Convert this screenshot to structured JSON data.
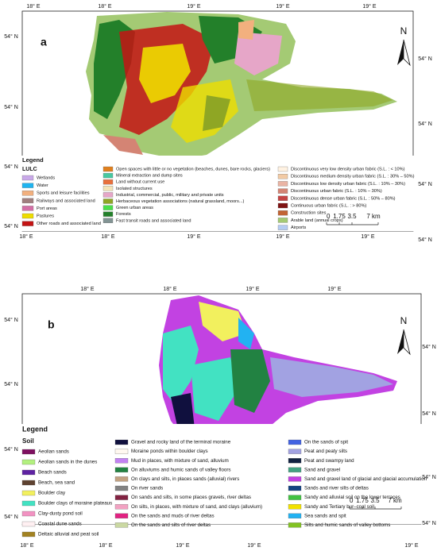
{
  "panel_a": {
    "label": "a",
    "north": "N",
    "legend_title": "Legend",
    "legend_subtitle": "LULC",
    "top_ticks": [
      "18° E",
      "18° E",
      "19° E",
      "19° E",
      "19° E"
    ],
    "bottom_ticks": [
      "18° E",
      "18° E",
      "19° E",
      "19° E",
      "19° E"
    ],
    "left_ticks": [
      "54° N",
      "54° N",
      "54° N",
      "54° N"
    ],
    "right_ticks": [
      "54° N",
      "54° N",
      "54° N",
      "54° N"
    ],
    "scale": [
      "0",
      "1.75",
      "3.5",
      "7 km"
    ],
    "legend": [
      [
        {
          "name": "Wetlands",
          "color": "#c9a9e9"
        },
        {
          "name": "Water",
          "color": "#1fb4f0"
        },
        {
          "name": "Sports and leisure facilities",
          "color": "#f2b07e"
        },
        {
          "name": "Railways and associated land",
          "color": "#a07f7f"
        },
        {
          "name": "Port areas",
          "color": "#d46fa6"
        },
        {
          "name": "Pastures",
          "color": "#eedd00"
        },
        {
          "name": "Other roads and associated land",
          "color": "#c41414"
        }
      ],
      [
        {
          "name": "Open spaces with little or no vegetation (beaches, dunes, bare rocks, glaciers)",
          "color": "#e0801e"
        },
        {
          "name": "Mineral extraction and dump sites",
          "color": "#48c8a0"
        },
        {
          "name": "Land without current use",
          "color": "#e8703c"
        },
        {
          "name": "Isolated structures",
          "color": "#f4e4b8"
        },
        {
          "name": "Industrial, commercial, public, military and private units",
          "color": "#e6a6c8"
        },
        {
          "name": "Herbaceous vegetation associations (natural grassland, moors...)",
          "color": "#8fa624"
        },
        {
          "name": "Green urban areas",
          "color": "#4ae04a"
        },
        {
          "name": "Forests",
          "color": "#23802a"
        },
        {
          "name": "Fast transit roads and associated land",
          "color": "#829494"
        }
      ],
      [
        {
          "name": "Discontinuous very low density urban fabric (S.L. : < 10%)",
          "color": "#fff2e2"
        },
        {
          "name": "Discontinuous medium density urban fabric (S.L. : 30% – 50%)",
          "color": "#f2caa4"
        },
        {
          "name": "Discontinuous low density urban fabric (S.L. : 10% – 30%)",
          "color": "#eab4a4"
        },
        {
          "name": "Discontinuous urban fabric (S.L. : 10% – 30%)",
          "color": "#d48474"
        },
        {
          "name": "Discontinuous dense urban fabric (S.L. : 50% – 80%)",
          "color": "#c44444"
        },
        {
          "name": "Continuous urban fabric (S.L. : > 80%)",
          "color": "#7e1212"
        },
        {
          "name": "Construction sites",
          "color": "#c26434"
        },
        {
          "name": "Arable land (annual crops)",
          "color": "#a4ca74"
        },
        {
          "name": "Airports",
          "color": "#b4ccf2"
        }
      ]
    ]
  },
  "panel_b": {
    "label": "b",
    "north": "N",
    "legend_title": "Legend",
    "legend_subtitle": "Soil",
    "top_ticks": [
      "18° E",
      "18° E",
      "19° E",
      "19° E"
    ],
    "bottom_ticks": [
      "18° E",
      "18° E",
      "19° E",
      "19° E",
      "19° E"
    ],
    "left_ticks": [
      "54° N",
      "54° N",
      "54° N",
      "54° N"
    ],
    "right_ticks": [
      "54° N",
      "54° N",
      "54° N",
      "54° N"
    ],
    "scale": [
      "0",
      "1.75",
      "3.5",
      "7 km"
    ],
    "legend": [
      [
        {
          "name": "Aeolian sands",
          "color": "#7e1060"
        },
        {
          "name": "Aeolian sands in the dunes",
          "color": "#b2f07e"
        },
        {
          "name": "Beach sands",
          "color": "#5e22a2"
        },
        {
          "name": "Beach, sea sand",
          "color": "#5e4230"
        },
        {
          "name": "Boulder clay",
          "color": "#f2f05e"
        },
        {
          "name": "Boulder clays of moraine plateaus",
          "color": "#42e2c2"
        },
        {
          "name": "Clay-dusty pond soil",
          "color": "#f292c2"
        },
        {
          "name": "Coastal dune sands",
          "color": "#fff0f2"
        },
        {
          "name": "Deltaic alluvial and peat soil",
          "color": "#a28222"
        }
      ],
      [
        {
          "name": "Gravel and rocky land of the terminal moraine",
          "color": "#10103e"
        },
        {
          "name": "Moraine ponds within boulder clays",
          "color": "#fff8f0"
        },
        {
          "name": "Mud in places, with mixture of sand, alluvium",
          "color": "#c282f2"
        },
        {
          "name": "On alluviums and humic sands of valley floors",
          "color": "#228242"
        },
        {
          "name": "On clays and silts, in places sands (alluvial) rivers",
          "color": "#c2a282"
        },
        {
          "name": "On river sands",
          "color": "#828282"
        },
        {
          "name": "On sands and silts, in some places gravels, river deltas",
          "color": "#822242"
        },
        {
          "name": "On silts, in places, with mixture of sand, and clays (alluvium)",
          "color": "#f2a2c2"
        },
        {
          "name": "On the sands and muds of river deltas",
          "color": "#e22282"
        },
        {
          "name": "On the sands and silts of river deltas",
          "color": "#cad8a2"
        }
      ],
      [
        {
          "name": "On the sands of spit",
          "color": "#4262e2"
        },
        {
          "name": "Peat and peaty silts",
          "color": "#a2a2e2"
        },
        {
          "name": "Peat and swampy land",
          "color": "#122242"
        },
        {
          "name": "Sand and gravel",
          "color": "#42a282"
        },
        {
          "name": "Sand and gravel land of glacial and glacial accumulation",
          "color": "#c242e2"
        },
        {
          "name": "Sands and river silts of deltas",
          "color": "#124282"
        },
        {
          "name": "Sandy and alluvial soil on the lower terraces",
          "color": "#42c242"
        },
        {
          "name": "Sandy and Tertiary bur–coal soil",
          "color": "#f2e200"
        },
        {
          "name": "Sea sands and spit",
          "color": "#22b2f2"
        },
        {
          "name": "Silts and humic sands of valley bottoms",
          "color": "#82c222"
        }
      ]
    ]
  }
}
